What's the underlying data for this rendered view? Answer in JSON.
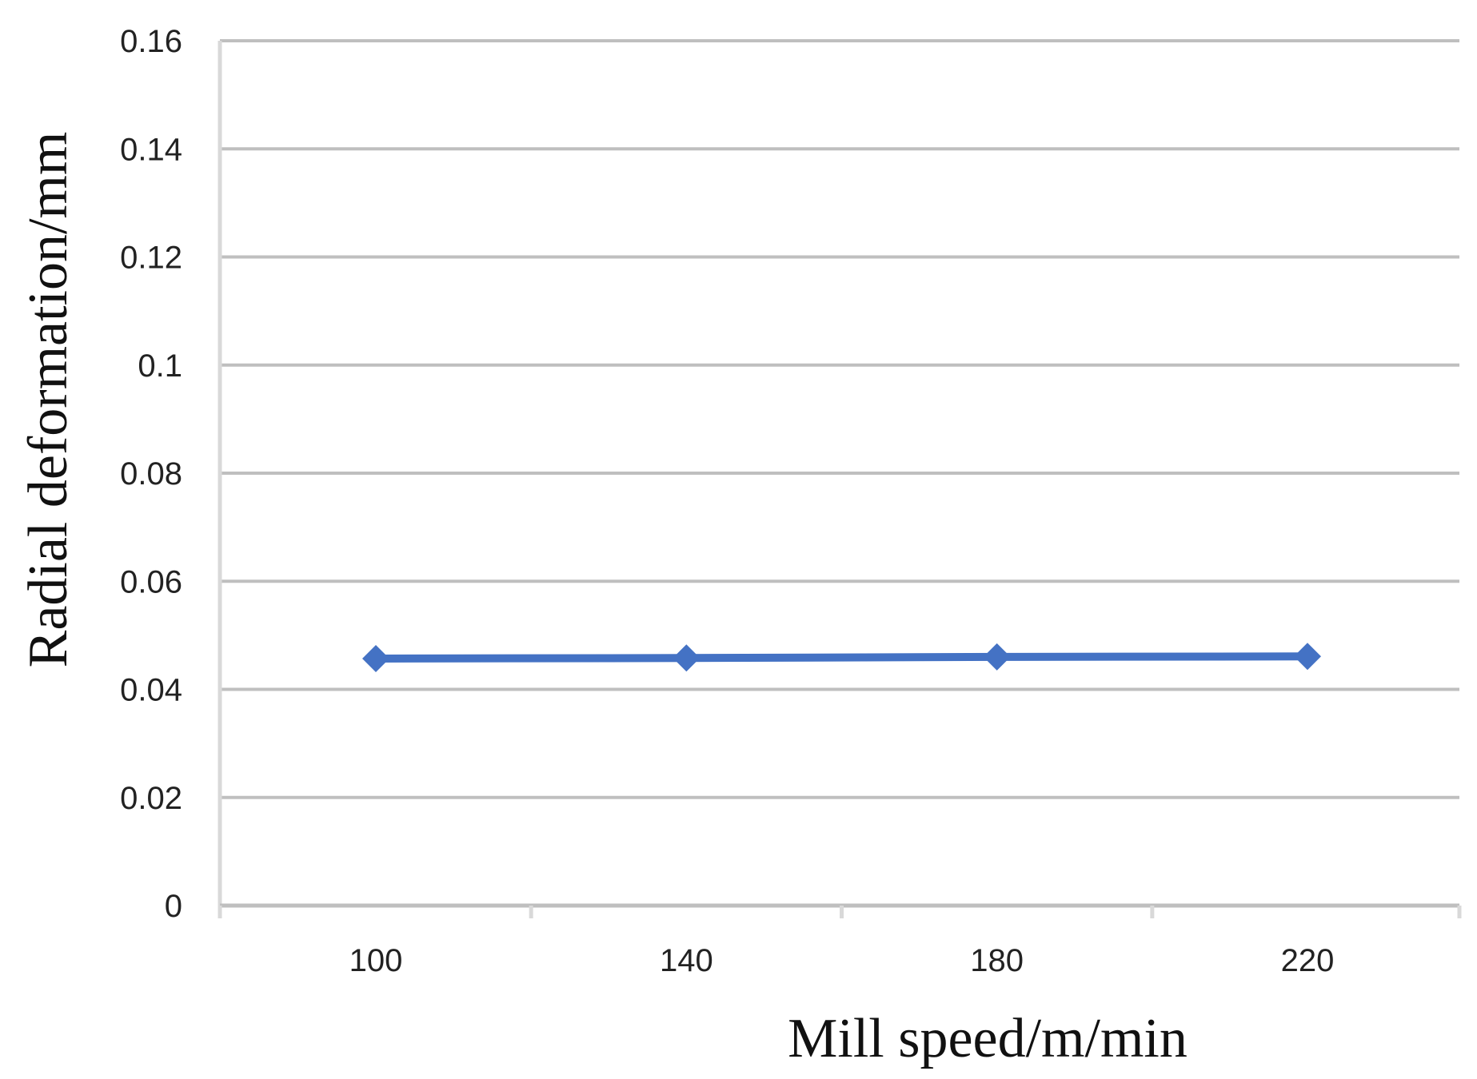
{
  "chart_data": {
    "type": "line",
    "title": "",
    "xlabel": "Mill speed/m/min",
    "ylabel": "Radial deformation/mm",
    "categories": [
      "100",
      "140",
      "180",
      "220"
    ],
    "series": [
      {
        "values": [
          0.0457,
          0.0458,
          0.046,
          0.0461
        ],
        "color": "#4472c4",
        "marker": "diamond"
      }
    ],
    "ylim": [
      0,
      0.16
    ],
    "yticks": [
      0,
      0.02,
      0.04,
      0.06,
      0.08,
      0.1,
      0.12,
      0.14,
      0.16
    ],
    "ytick_labels": [
      "0",
      "0.02",
      "0.04",
      "0.06",
      "0.08",
      "0.1",
      "0.12",
      "0.14",
      "0.16"
    ],
    "grid": true,
    "grid_color": "#bfbfbf",
    "axis_color": "#d9d9d9"
  }
}
